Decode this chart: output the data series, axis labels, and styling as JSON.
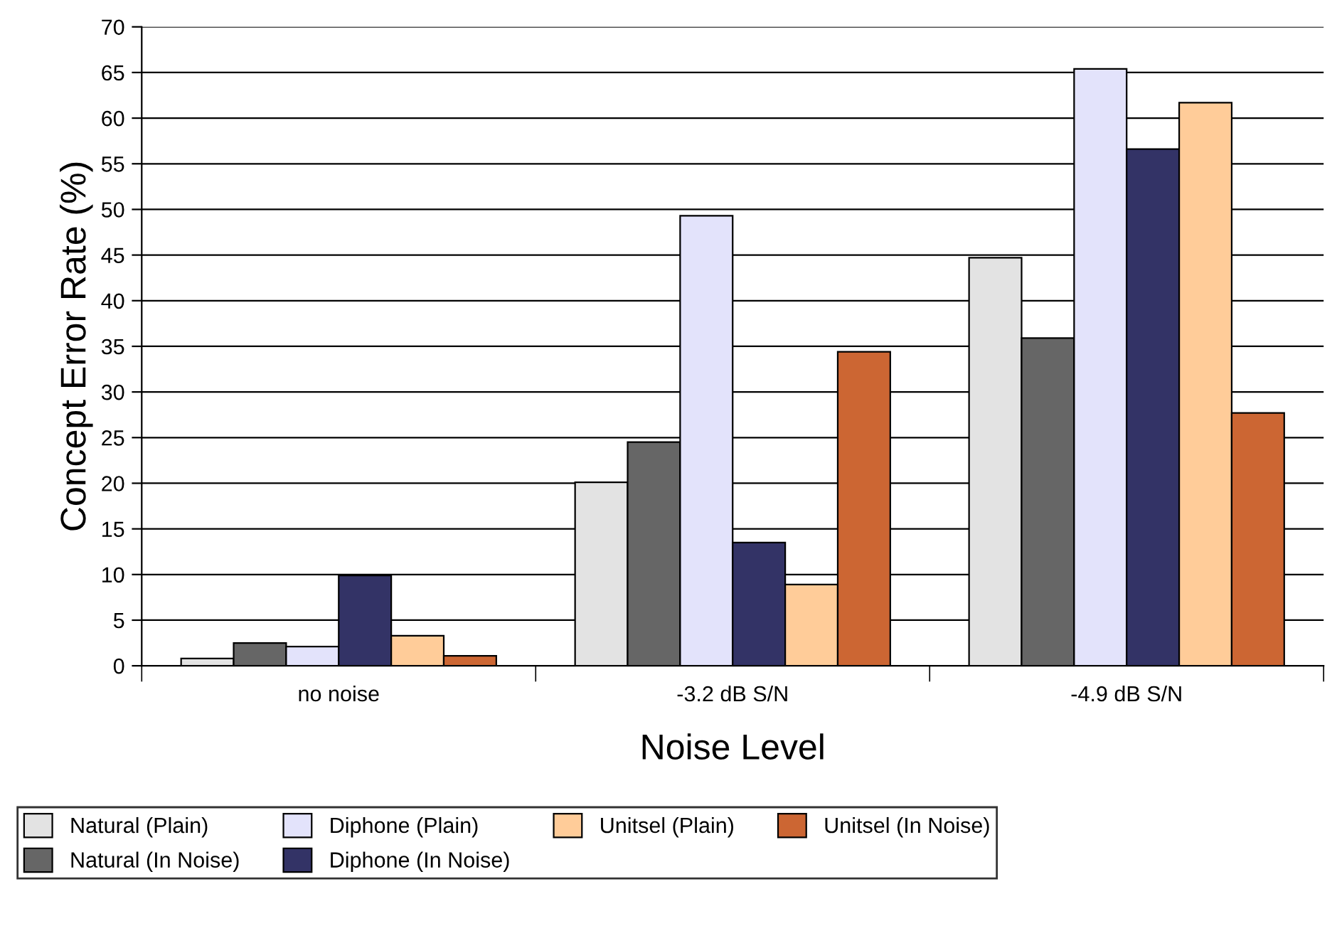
{
  "chart_data": {
    "type": "bar",
    "xlabel": "Noise Level",
    "ylabel": "Concept Error Rate (%)",
    "categories": [
      "no noise",
      "-3.2 dB S/N",
      "-4.9 dB S/N"
    ],
    "series": [
      {
        "name": "Natural (Plain)",
        "color": "#e3e3e3",
        "values": [
          0.8,
          20.1,
          44.7
        ]
      },
      {
        "name": "Natural (In Noise)",
        "color": "#666666",
        "values": [
          2.5,
          24.5,
          35.9
        ]
      },
      {
        "name": "Diphone (Plain)",
        "color": "#e3e3fb",
        "values": [
          2.1,
          49.3,
          65.4
        ]
      },
      {
        "name": "Diphone (In Noise)",
        "color": "#333366",
        "values": [
          9.9,
          13.5,
          56.6
        ]
      },
      {
        "name": "Unitsel (Plain)",
        "color": "#ffcc99",
        "values": [
          3.3,
          8.9,
          61.7
        ]
      },
      {
        "name": "Unitsel (In Noise)",
        "color": "#cc6633",
        "values": [
          1.1,
          34.4,
          27.7
        ]
      }
    ],
    "ylim": [
      0,
      70
    ],
    "yticks": [
      0,
      5,
      10,
      15,
      20,
      25,
      30,
      35,
      40,
      45,
      50,
      55,
      60,
      65,
      70
    ],
    "grid": "y",
    "legend": "bottom"
  }
}
